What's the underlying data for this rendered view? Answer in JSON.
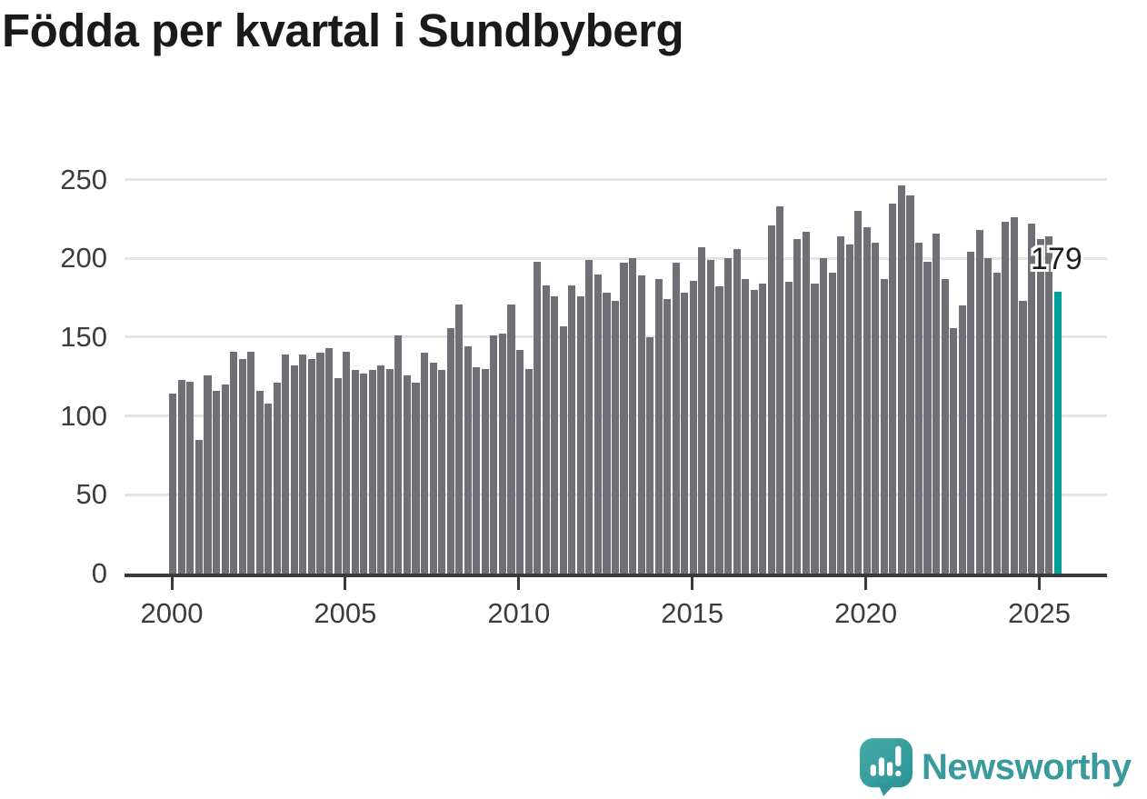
{
  "title": "Födda per kvartal i Sundbyberg",
  "chart_data": {
    "type": "bar",
    "title": "Födda per kvartal i Sundbyberg",
    "xlabel": "",
    "ylabel": "",
    "ylim": [
      0,
      250
    ],
    "grid": true,
    "y_tick_labels": [
      "0",
      "50",
      "100",
      "150",
      "200",
      "250"
    ],
    "y_tick_values": [
      0,
      50,
      100,
      150,
      200,
      250
    ],
    "x_tick_labels": [
      "2000",
      "2005",
      "2010",
      "2015",
      "2020",
      "2025"
    ],
    "start_period": "2000 Q1",
    "end_period": "2025 Q3",
    "bar_color": "#6f6f75",
    "highlight_color": "#00a19b",
    "values": [
      114,
      123,
      122,
      85,
      126,
      116,
      120,
      141,
      136,
      141,
      116,
      108,
      121,
      139,
      132,
      139,
      136,
      140,
      143,
      124,
      141,
      129,
      127,
      129,
      132,
      130,
      151,
      126,
      121,
      140,
      134,
      129,
      156,
      171,
      144,
      131,
      130,
      151,
      152,
      171,
      142,
      130,
      198,
      183,
      176,
      157,
      183,
      176,
      199,
      190,
      178,
      173,
      197,
      200,
      189,
      150,
      187,
      174,
      197,
      178,
      186,
      207,
      199,
      182,
      200,
      206,
      187,
      180,
      184,
      221,
      233,
      185,
      212,
      217,
      184,
      200,
      191,
      214,
      209,
      230,
      220,
      210,
      187,
      235,
      246,
      240,
      210,
      198,
      216,
      187,
      156,
      170,
      204,
      218,
      200,
      191,
      223,
      226,
      173,
      222,
      212,
      214,
      179
    ],
    "highlight": {
      "index": 102,
      "value": 179,
      "label": "179"
    },
    "legend_position": "none"
  },
  "branding": {
    "logo_text": "Newsworthy",
    "logo_color": "#399a9c",
    "icon": "newsworthy-speech-bubble-bar-chart-icon"
  }
}
